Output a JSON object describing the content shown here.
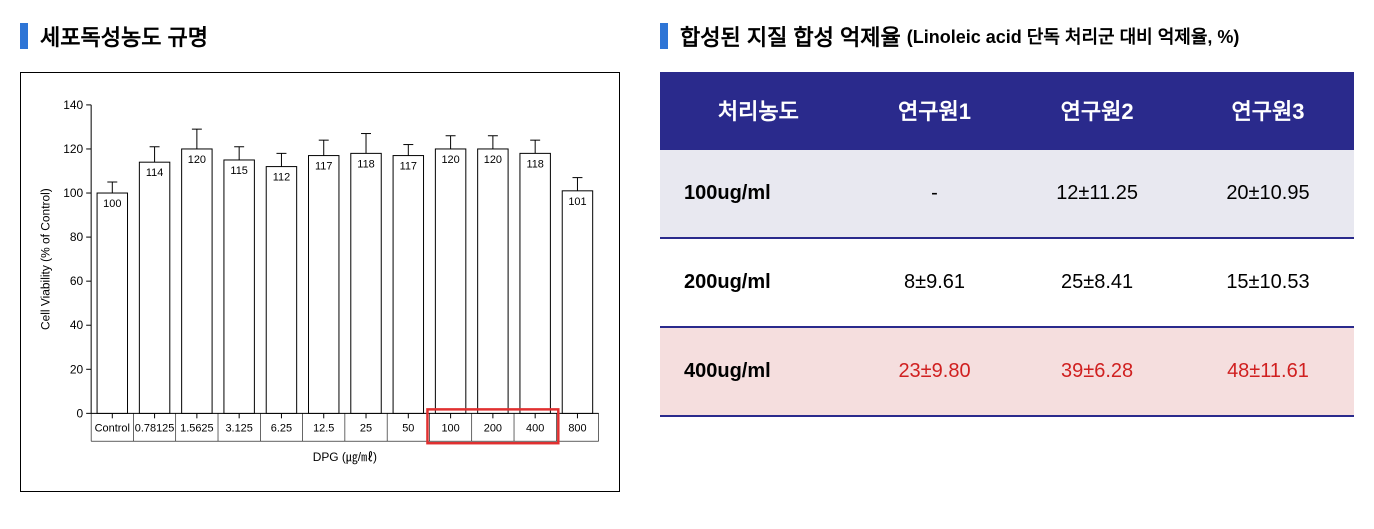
{
  "left": {
    "title": "세포독성농도 규명",
    "chart": {
      "type": "bar",
      "ylabel": "Cell Viability (% of Control)",
      "xlabel": "DPG (㎍/㎖)",
      "ylim": [
        0,
        140
      ],
      "ytick_step": 20,
      "categories": [
        "Control",
        "0.78125",
        "1.5625",
        "3.125",
        "6.25",
        "12.5",
        "25",
        "50",
        "100",
        "200",
        "400",
        "800"
      ],
      "values": [
        100,
        114,
        120,
        115,
        112,
        117,
        118,
        117,
        120,
        120,
        118,
        101
      ],
      "errors": [
        5,
        7,
        9,
        6,
        6,
        7,
        9,
        5,
        6,
        6,
        6,
        6
      ],
      "bar_fill": "#ffffff",
      "bar_stroke": "#000000",
      "axis_color": "#000000",
      "text_color": "#000000",
      "highlight_box": {
        "color": "#e03030",
        "start_idx": 8,
        "end_idx": 10
      },
      "label_fontsize": 11,
      "axis_fontsize": 12,
      "value_fontsize": 11
    }
  },
  "right": {
    "title": "합성된 지질 합성 억제율",
    "subtitle": "(Linoleic acid 단독 처리군 대비 억제율, %)",
    "table": {
      "header_bg": "#2a2a8c",
      "header_fg": "#ffffff",
      "border_color": "#2a2a8c",
      "highlight_color": "#d02020",
      "columns": [
        "처리농도",
        "연구원1",
        "연구원2",
        "연구원3"
      ],
      "rows": [
        {
          "label": "100ug/ml",
          "cells": [
            "-",
            "12±11.25",
            "20±10.95"
          ],
          "bg": "#e8e8f0",
          "highlight": false
        },
        {
          "label": "200ug/ml",
          "cells": [
            "8±9.61",
            "25±8.41",
            "15±10.53"
          ],
          "bg": "#ffffff",
          "highlight": false
        },
        {
          "label": "400ug/ml",
          "cells": [
            "23±9.80",
            "39±6.28",
            "48±11.61"
          ],
          "bg": "#f5dede",
          "highlight": true
        }
      ]
    }
  }
}
